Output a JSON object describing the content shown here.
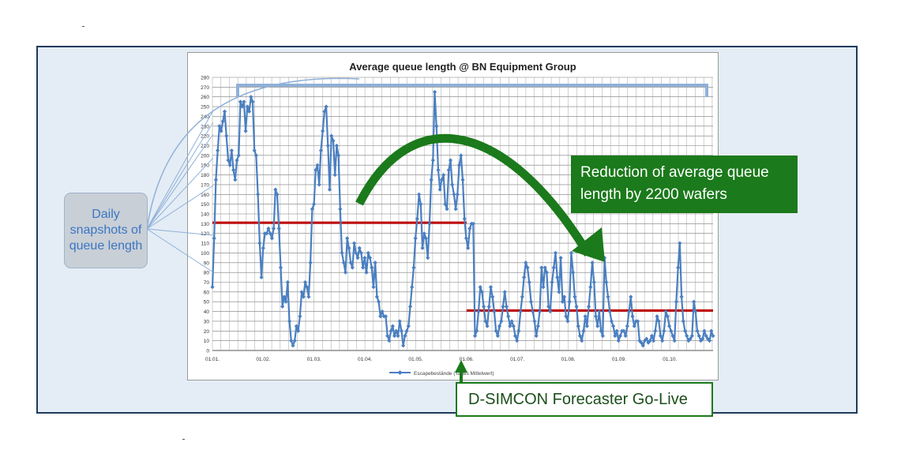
{
  "chart_data": {
    "type": "line",
    "title": "Average queue length @ BN Equipment Group",
    "xlabel": "",
    "ylabel": "",
    "ylim": [
      0,
      280
    ],
    "yticks": [
      0,
      10,
      20,
      30,
      40,
      50,
      60,
      70,
      80,
      90,
      100,
      110,
      120,
      130,
      140,
      150,
      160,
      170,
      180,
      190,
      200,
      210,
      220,
      230,
      240,
      250,
      260,
      270,
      280
    ],
    "xtick_labels": [
      "01.01.",
      "01.02.",
      "01.03.",
      "01.04.",
      "01.05.",
      "01.06.",
      "01.07.",
      "01.08.",
      "01.09.",
      "01.10."
    ],
    "grid": true,
    "legend_position": "bottom",
    "series": [
      {
        "name": "Escapebestände (Tages Mittelwert)",
        "color": "#4a7fc1",
        "values": [
          65,
          115,
          175,
          205,
          230,
          225,
          235,
          245,
          220,
          195,
          190,
          205,
          185,
          175,
          195,
          200,
          255,
          250,
          255,
          225,
          250,
          245,
          260,
          255,
          205,
          200,
          160,
          110,
          75,
          105,
          120,
          120,
          125,
          120,
          115,
          125,
          165,
          160,
          125,
          85,
          45,
          55,
          50,
          70,
          30,
          10,
          5,
          10,
          25,
          20,
          35,
          60,
          55,
          70,
          65,
          55,
          90,
          145,
          150,
          185,
          190,
          170,
          205,
          225,
          245,
          250,
          210,
          165,
          220,
          215,
          180,
          210,
          200,
          145,
          100,
          90,
          80,
          115,
          105,
          90,
          85,
          110,
          100,
          95,
          105,
          100,
          85,
          95,
          80,
          100,
          95,
          85,
          65,
          90,
          55,
          50,
          35,
          40,
          35,
          35,
          15,
          10,
          20,
          25,
          15,
          20,
          15,
          30,
          20,
          5,
          15,
          20,
          25,
          45,
          65,
          85,
          115,
          135,
          160,
          150,
          105,
          120,
          115,
          95,
          130,
          175,
          195,
          265,
          230,
          185,
          165,
          175,
          180,
          150,
          145,
          185,
          195,
          170,
          160,
          145,
          160,
          190,
          200,
          175,
          135,
          115,
          105,
          125,
          130,
          130,
          15,
          20,
          40,
          65,
          60,
          45,
          30,
          25,
          45,
          65,
          55,
          40,
          20,
          15,
          25,
          30,
          45,
          60,
          45,
          35,
          25,
          30,
          25,
          15,
          10,
          20,
          40,
          55,
          75,
          90,
          85,
          70,
          50,
          40,
          30,
          15,
          25,
          40,
          85,
          65,
          85,
          80,
          45,
          40,
          70,
          85,
          100,
          75,
          60,
          95,
          50,
          55,
          35,
          30,
          50,
          100,
          80,
          55,
          45,
          25,
          15,
          10,
          20,
          35,
          25,
          45,
          65,
          90,
          70,
          35,
          25,
          40,
          20,
          15,
          95,
          70,
          55,
          40,
          30,
          25,
          15,
          20,
          10,
          15,
          20,
          20,
          15,
          25,
          40,
          55,
          35,
          25,
          30,
          30,
          10,
          8,
          5,
          10,
          12,
          8,
          10,
          15,
          10,
          20,
          35,
          30,
          15,
          10,
          20,
          40,
          35,
          25,
          20,
          15,
          10,
          50,
          85,
          110,
          55,
          30,
          20,
          15,
          10,
          12,
          15,
          50,
          40,
          20,
          15,
          10,
          12,
          20,
          15,
          12,
          10,
          20,
          15
        ]
      }
    ],
    "reference_lines": [
      {
        "value": 131,
        "x_start": "01.01.",
        "x_end": "01.06."
      },
      {
        "value": 41,
        "x_start": "01.06.",
        "x_end": "end"
      }
    ]
  },
  "annotations": {
    "snapshots_callout": "Daily snapshots of queue length",
    "reduction_callout": "Reduction of average queue length by 2200 wafers",
    "golive_callout": "D-SIMCON Forecaster Go-Live"
  },
  "colors": {
    "frame_background": "#e4edf5",
    "frame_border": "#1f3a5c",
    "line": "#4a7fc1",
    "reference_line": "#c00000",
    "green": "#1b7a1b",
    "bracket": "#8fb0d8"
  }
}
